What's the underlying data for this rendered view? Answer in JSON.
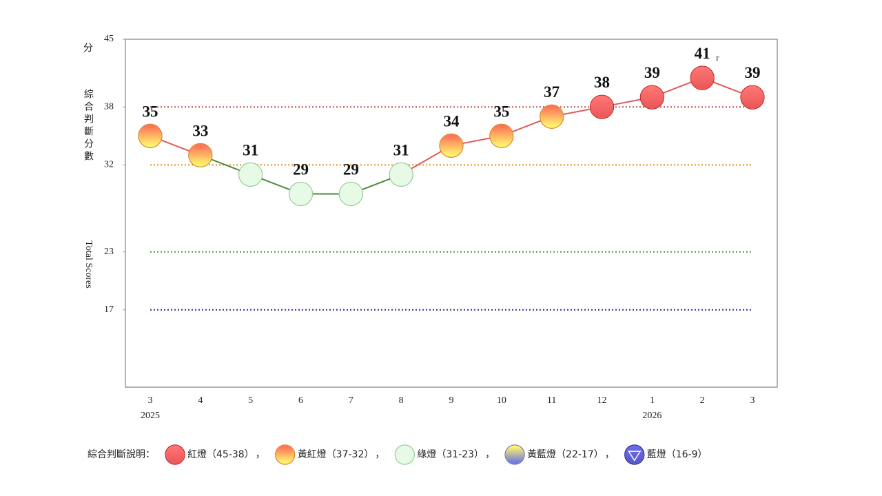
{
  "chart_data": {
    "type": "line",
    "categories": [
      "3",
      "4",
      "5",
      "6",
      "7",
      "8",
      "9",
      "10",
      "11",
      "12",
      "1",
      "2",
      "3"
    ],
    "years": [
      "2025",
      null,
      null,
      null,
      null,
      null,
      null,
      null,
      null,
      null,
      "2026",
      null,
      null
    ],
    "values": [
      35,
      33,
      31,
      29,
      29,
      31,
      34,
      35,
      37,
      38,
      39,
      41,
      39
    ],
    "annotations": [
      {
        "index": 11,
        "text": "r"
      }
    ],
    "ylim": [
      9,
      45
    ],
    "yticks": [
      45,
      38,
      32,
      23,
      17
    ],
    "y_unit": "分",
    "y_label": "綜合判斷分數",
    "y_label_en": "Total Scores",
    "thresholds": [
      {
        "value": 38,
        "color": "#c0504d"
      },
      {
        "value": 32,
        "color": "#e0901a"
      },
      {
        "value": 23,
        "color": "#3a9a3a"
      },
      {
        "value": 17,
        "color": "#2b2b9a"
      }
    ],
    "lamps": [
      {
        "label": "紅燈（45-38）",
        "min": 38,
        "top": "#ff2a2a",
        "bottom": "#e00000",
        "stroke": "#c00000",
        "line": "#e05a5a"
      },
      {
        "label": "黃紅燈（37-32）",
        "min": 32,
        "top": "#ff2a00",
        "bottom": "#ffee20",
        "stroke": "#d07000",
        "line": "#e05a5a"
      },
      {
        "label": "綠燈（31-23）",
        "min": 23,
        "top": "#d8f7d8",
        "bottom": "#d8f7d8",
        "stroke": "#80c080",
        "line": "#4a8a3a"
      },
      {
        "label": "黃藍燈（22-17）",
        "min": 17,
        "top": "#ffee20",
        "bottom": "#2030d0",
        "stroke": "#6060a0",
        "line": "#6060c0"
      },
      {
        "label": "藍燈（16-9）",
        "min": 9,
        "top": "#1a1ae0",
        "bottom": "#0000b0",
        "stroke": "#000080",
        "line": "#2020c0"
      }
    ],
    "legend": {
      "title": "綜合判斷說明：",
      "separator": "，"
    }
  }
}
